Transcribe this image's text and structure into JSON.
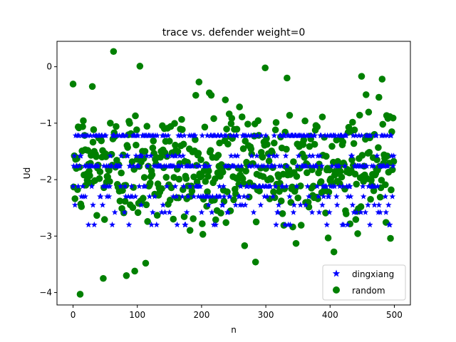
{
  "chart_data": {
    "type": "scatter",
    "title": "trace vs. defender weight=0",
    "xlabel": "n",
    "ylabel": "Ud",
    "xlim": [
      -25.0,
      525.0
    ],
    "ylim": [
      -4.22,
      0.45
    ],
    "x_ticks": [
      0,
      100,
      200,
      300,
      400,
      500
    ],
    "x_tick_labels": [
      "0",
      "100",
      "200",
      "300",
      "400",
      "500"
    ],
    "y_ticks": [
      -4,
      -3,
      -2,
      -1,
      0
    ],
    "y_tick_labels": [
      "−4",
      "−3",
      "−2",
      "−1",
      "0"
    ],
    "grid": false,
    "legend_position": "lower right",
    "series": [
      {
        "name": "dingxiang",
        "marker": "star",
        "color": "#0000ff",
        "level_values": [
          -1.22,
          -1.58,
          -1.76,
          -2.12,
          -2.3,
          -2.45,
          -2.58,
          -2.8
        ],
        "n_points": 500
      },
      {
        "name": "random",
        "marker": "circle",
        "color": "#008000",
        "n_points": 500,
        "notable_points": [
          {
            "x": 63,
            "y": 0.27
          },
          {
            "x": 104,
            "y": 0.01
          },
          {
            "x": 299,
            "y": -0.02
          },
          {
            "x": 11,
            "y": -4.03
          },
          {
            "x": 47,
            "y": -3.75
          },
          {
            "x": 83,
            "y": -3.7
          },
          {
            "x": 96,
            "y": -3.62
          },
          {
            "x": 113,
            "y": -3.48
          },
          {
            "x": 284,
            "y": -3.46
          },
          {
            "x": 406,
            "y": -3.28
          },
          {
            "x": 267,
            "y": -3.17
          },
          {
            "x": 347,
            "y": -3.13
          },
          {
            "x": 30,
            "y": -0.35
          },
          {
            "x": 333,
            "y": -0.2
          },
          {
            "x": 449,
            "y": -0.17
          },
          {
            "x": 481,
            "y": -0.22
          }
        ]
      }
    ]
  }
}
